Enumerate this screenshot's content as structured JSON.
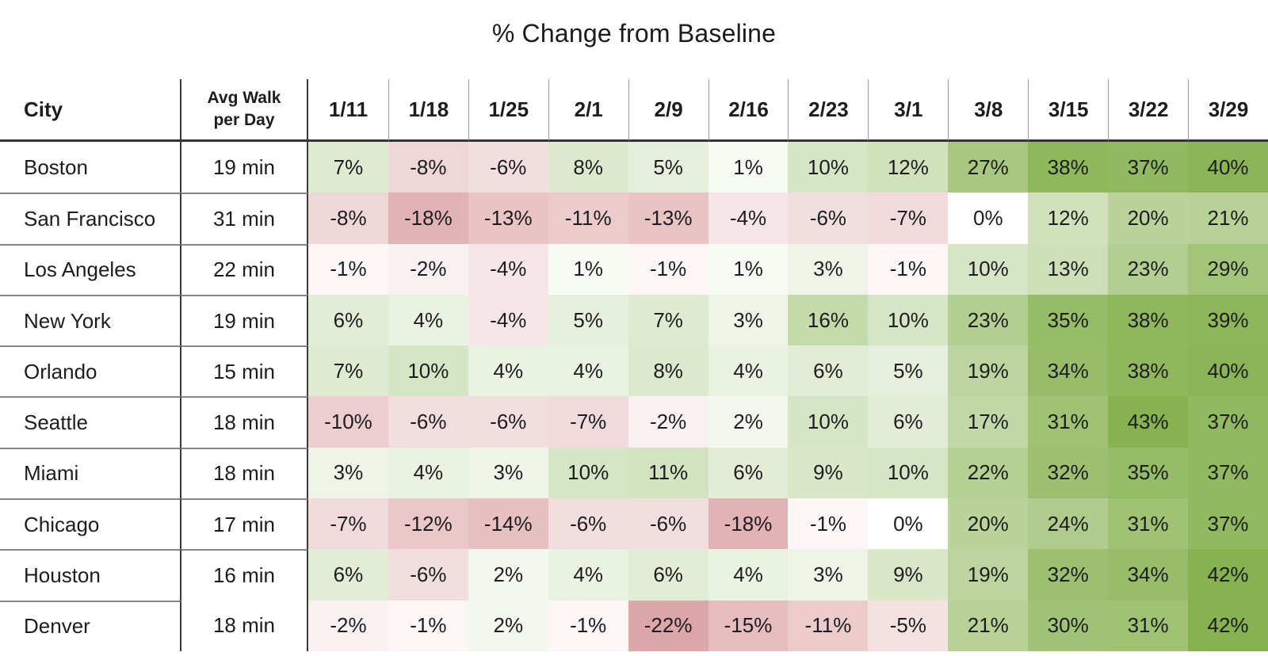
{
  "title": "% Change from Baseline",
  "table": {
    "city_header": "City",
    "avg_header_line1": "Avg Walk",
    "avg_header_line2": "per Day",
    "missing_avg_separator_row": "Denver"
  },
  "chart_data": {
    "type": "heatmap",
    "title": "% Change from Baseline",
    "columns": [
      "1/11",
      "1/18",
      "1/25",
      "2/1",
      "2/9",
      "2/16",
      "2/23",
      "3/1",
      "3/8",
      "3/15",
      "3/22",
      "3/29"
    ],
    "rows": [
      {
        "city": "Boston",
        "avg_walk": "19 min",
        "values": [
          7,
          -8,
          -6,
          8,
          5,
          1,
          10,
          12,
          27,
          38,
          37,
          40
        ]
      },
      {
        "city": "San Francisco",
        "avg_walk": "31 min",
        "values": [
          -8,
          -18,
          -13,
          -11,
          -13,
          -4,
          -6,
          -7,
          0,
          12,
          20,
          21
        ]
      },
      {
        "city": "Los Angeles",
        "avg_walk": "22 min",
        "values": [
          -1,
          -2,
          -4,
          1,
          -1,
          1,
          3,
          -1,
          10,
          13,
          23,
          29
        ]
      },
      {
        "city": "New York",
        "avg_walk": "19 min",
        "values": [
          6,
          4,
          -4,
          5,
          7,
          3,
          16,
          10,
          23,
          35,
          38,
          39
        ]
      },
      {
        "city": "Orlando",
        "avg_walk": "15 min",
        "values": [
          7,
          10,
          4,
          4,
          8,
          4,
          6,
          5,
          19,
          34,
          38,
          40
        ]
      },
      {
        "city": "Seattle",
        "avg_walk": "18 min",
        "values": [
          -10,
          -6,
          -6,
          -7,
          -2,
          2,
          10,
          6,
          17,
          31,
          43,
          37
        ]
      },
      {
        "city": "Miami",
        "avg_walk": "18 min",
        "values": [
          3,
          4,
          3,
          10,
          11,
          6,
          9,
          10,
          22,
          32,
          35,
          37
        ]
      },
      {
        "city": "Chicago",
        "avg_walk": "17 min",
        "values": [
          -7,
          -12,
          -14,
          -6,
          -6,
          -18,
          -1,
          0,
          20,
          24,
          31,
          37
        ]
      },
      {
        "city": "Houston",
        "avg_walk": "16 min",
        "values": [
          6,
          -6,
          2,
          4,
          6,
          4,
          3,
          9,
          19,
          32,
          34,
          42
        ]
      },
      {
        "city": "Denver",
        "avg_walk": "18 min",
        "values": [
          -2,
          -1,
          2,
          -1,
          -22,
          -15,
          -11,
          -5,
          21,
          30,
          31,
          42
        ]
      }
    ],
    "value_suffix": "%",
    "heat_scale": {
      "zero_color": "#FFFFFF",
      "positive_end_color": "#86B250",
      "negative_end_color": "#DA9EA1",
      "positive_limit": 42,
      "negative_limit": 25,
      "gamma": 0.75
    }
  }
}
